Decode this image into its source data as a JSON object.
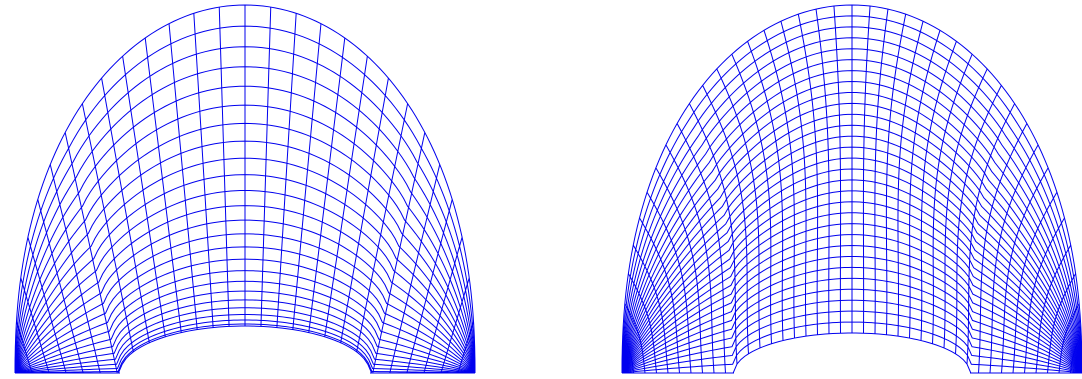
{
  "figure": {
    "panels": [
      {
        "id": "left-mesh",
        "description": "",
        "mesh_type": "radial-conformal",
        "radial_lines": 28,
        "circumferential_lines": 24
      },
      {
        "id": "right-mesh",
        "description": "",
        "mesh_type": "elliptic-smoothed",
        "radial_lines": 40,
        "circumferential_lines": 30
      }
    ],
    "colors": {
      "mesh": "#0000ee",
      "background": "#ffffff"
    }
  }
}
